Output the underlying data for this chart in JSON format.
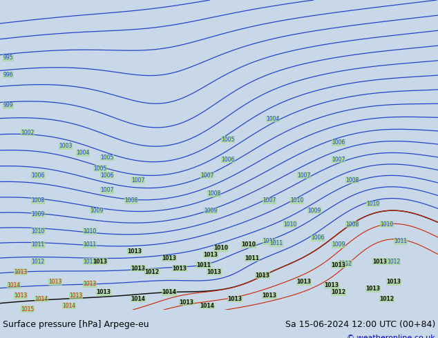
{
  "title_left": "Surface pressure [hPa] Arpege-eu",
  "title_right": "Sa 15-06-2024 12:00 UTC (00+84)",
  "copyright": "© weatheronline.co.uk",
  "sea_color": "#c8d8e8",
  "land_color": "#a8d890",
  "border_color": "#505040",
  "contour_blue": "#2244cc",
  "contour_black": "#111111",
  "contour_red": "#cc2200",
  "label_blue": "#2244cc",
  "label_black": "#111111",
  "label_red": "#cc2200",
  "footer_bg": "#c8e8c0",
  "footer_text": "#000000",
  "footer_copy": "#0000bb"
}
